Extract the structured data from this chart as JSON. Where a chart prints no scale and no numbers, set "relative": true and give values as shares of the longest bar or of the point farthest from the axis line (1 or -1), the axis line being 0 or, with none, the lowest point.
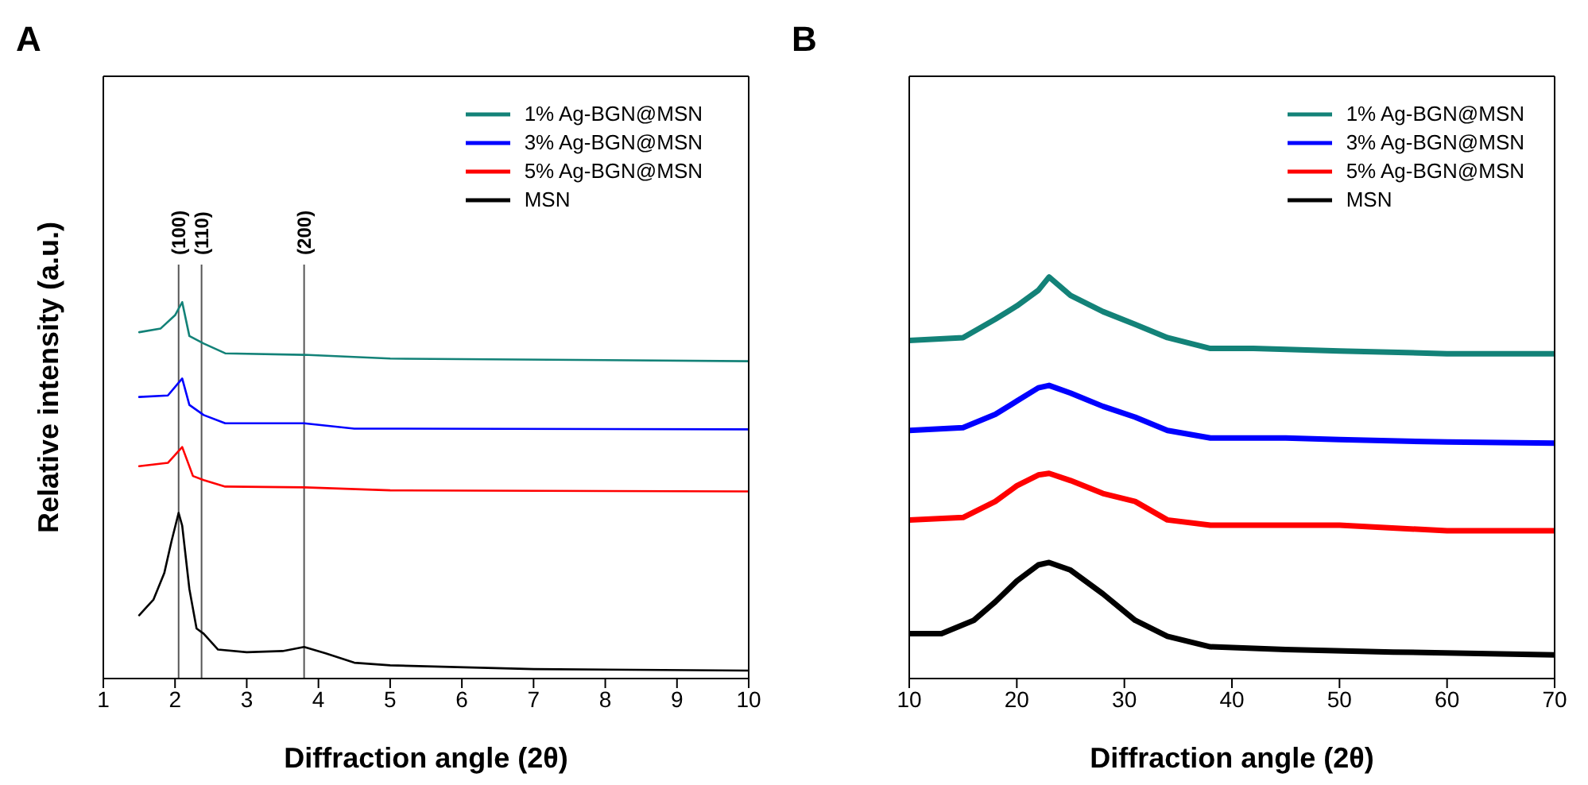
{
  "chart_data": [
    {
      "type": "line",
      "title": "A",
      "xlabel": "Diffraction angle (2θ)",
      "ylabel": "Relative intensity (a.u.)",
      "relative": true,
      "xlim": [
        1,
        10
      ],
      "xticks": [
        1,
        2,
        3,
        4,
        5,
        6,
        7,
        8,
        9,
        10
      ],
      "legend": "top right",
      "marker": "none",
      "line_style": "solid",
      "series": [
        {
          "name": "1% Ag-BGN@MSN",
          "color": "#138278",
          "x": [
            1.5,
            1.8,
            2.0,
            2.1,
            2.2,
            2.4,
            2.7,
            3.8,
            5,
            10
          ],
          "values": [
            0.92,
            0.93,
            0.965,
            1.0,
            0.91,
            0.89,
            0.864,
            0.86,
            0.85,
            0.843
          ]
        },
        {
          "name": "3% Ag-BGN@MSN",
          "color": "#0000ff",
          "x": [
            1.5,
            1.9,
            2.1,
            2.2,
            2.4,
            2.7,
            3.8,
            4.5,
            10
          ],
          "values": [
            0.748,
            0.752,
            0.797,
            0.727,
            0.7,
            0.678,
            0.678,
            0.664,
            0.662
          ]
        },
        {
          "name": "5% Ag-BGN@MSN",
          "color": "#ff0000",
          "x": [
            1.5,
            1.9,
            2.1,
            2.25,
            2.4,
            2.7,
            3.8,
            5,
            10
          ],
          "values": [
            0.564,
            0.573,
            0.615,
            0.538,
            0.527,
            0.51,
            0.508,
            0.5,
            0.497
          ]
        },
        {
          "name": "MSN",
          "color": "#000000",
          "x": [
            1.5,
            1.7,
            1.85,
            1.95,
            2.05,
            2.1,
            2.2,
            2.3,
            2.4,
            2.6,
            3.0,
            3.5,
            3.8,
            4.1,
            4.5,
            5,
            7,
            10
          ],
          "values": [
            0.168,
            0.21,
            0.28,
            0.364,
            0.44,
            0.406,
            0.238,
            0.133,
            0.119,
            0.077,
            0.07,
            0.073,
            0.084,
            0.067,
            0.042,
            0.035,
            0.025,
            0.021
          ]
        }
      ],
      "ref_lines": [
        {
          "axis": "x",
          "value": 2.05,
          "color": "#555555"
        },
        {
          "axis": "x",
          "value": 2.37,
          "color": "#555555"
        },
        {
          "axis": "x",
          "value": 3.8,
          "color": "#555555"
        }
      ],
      "annotations": [
        {
          "text": "(100)",
          "x": 2.05,
          "y": 1.1
        },
        {
          "text": "(110)",
          "x": 2.37,
          "y": 1.1
        },
        {
          "text": "(200)",
          "x": 3.8,
          "y": 1.1
        }
      ]
    },
    {
      "type": "line",
      "title": "B",
      "xlabel": "Diffraction angle (2θ)",
      "relative": true,
      "xlim": [
        10,
        70
      ],
      "xticks": [
        10,
        20,
        30,
        40,
        50,
        60,
        70
      ],
      "legend": "top right",
      "marker": "none",
      "line_style": "solid",
      "series": [
        {
          "name": "1% Ag-BGN@MSN",
          "color": "#138278",
          "x": [
            10,
            15,
            18,
            20,
            22,
            23,
            25,
            28,
            31,
            34,
            38,
            42,
            50,
            60,
            70
          ],
          "values": [
            0.842,
            0.849,
            0.895,
            0.928,
            0.967,
            1.0,
            0.954,
            0.914,
            0.882,
            0.849,
            0.822,
            0.822,
            0.816,
            0.809,
            0.809
          ]
        },
        {
          "name": "3% Ag-BGN@MSN",
          "color": "#0000ff",
          "x": [
            10,
            15,
            18,
            20,
            22,
            23,
            25,
            28,
            31,
            34,
            38,
            45,
            50,
            60,
            70
          ],
          "values": [
            0.618,
            0.625,
            0.658,
            0.691,
            0.724,
            0.73,
            0.711,
            0.678,
            0.651,
            0.618,
            0.599,
            0.599,
            0.595,
            0.589,
            0.586
          ]
        },
        {
          "name": "5% Ag-BGN@MSN",
          "color": "#ff0000",
          "x": [
            10,
            15,
            18,
            20,
            22,
            23,
            25,
            28,
            31,
            34,
            38,
            45,
            50,
            60,
            70
          ],
          "values": [
            0.395,
            0.401,
            0.441,
            0.48,
            0.507,
            0.511,
            0.493,
            0.461,
            0.441,
            0.395,
            0.382,
            0.382,
            0.382,
            0.368,
            0.368
          ]
        },
        {
          "name": "MSN",
          "color": "#000000",
          "x": [
            10,
            13,
            16,
            18,
            20,
            22,
            23,
            25,
            28,
            31,
            34,
            38,
            45,
            55,
            70
          ],
          "values": [
            0.112,
            0.112,
            0.145,
            0.191,
            0.243,
            0.283,
            0.289,
            0.27,
            0.211,
            0.145,
            0.105,
            0.079,
            0.072,
            0.066,
            0.059
          ]
        }
      ]
    }
  ]
}
